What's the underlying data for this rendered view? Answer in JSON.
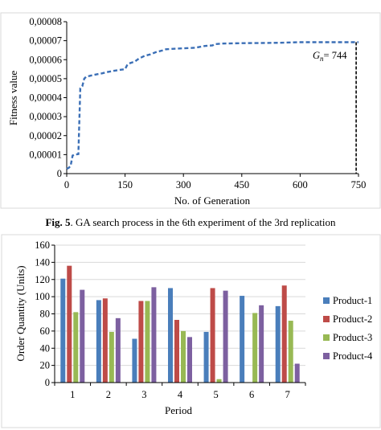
{
  "top_caption_fragment": "",
  "chart1": {
    "ylabel": "Fitness value",
    "xlabel": "No. of Generation",
    "annotation": "= 744",
    "annotation_symbol": "G",
    "annotation_subscript": "n",
    "line_color": "#3b6fb6"
  },
  "caption": {
    "prefix": "Fig. 5",
    "text": ". GA search process in the 6th experiment of the 3rd replication"
  },
  "chart2": {
    "ylabel": "Order Quantity (Units)",
    "xlabel": "Period"
  },
  "chart_data": [
    {
      "type": "line",
      "title": "",
      "xlabel": "No. of Generation",
      "ylabel": "Fitness value",
      "xlim": [
        0,
        750
      ],
      "ylim": [
        0,
        8e-05
      ],
      "x_ticks": [
        "0",
        "150",
        "300",
        "450",
        "600",
        "750"
      ],
      "y_ticks": [
        "0",
        "0,00001",
        "0,00002",
        "0,00003",
        "0,00004",
        "0,00005",
        "0,00006",
        "0,00007",
        "0,00008"
      ],
      "grid": false,
      "series": [
        {
          "x": [
            0,
            5,
            10,
            15,
            20,
            25,
            30,
            35,
            40,
            45,
            50,
            60,
            75,
            90,
            105,
            120,
            135,
            150,
            155,
            160,
            175,
            185,
            200,
            215,
            230,
            245,
            255,
            270,
            300,
            330,
            355,
            375,
            380,
            400,
            450,
            500,
            550,
            600,
            650,
            700,
            744,
            750
          ],
          "y": [
            2.5e-06,
            3e-06,
            4e-06,
            9.5e-06,
            1e-05,
            1.01e-05,
            1.03e-05,
            4.5e-05,
            4.6e-05,
            5e-05,
            5.1e-05,
            5.15e-05,
            5.22e-05,
            5.28e-05,
            5.35e-05,
            5.41e-05,
            5.46e-05,
            5.5e-05,
            5.7e-05,
            5.8e-05,
            5.9e-05,
            6.05e-05,
            6.2e-05,
            6.28e-05,
            6.4e-05,
            6.48e-05,
            6.55e-05,
            6.57e-05,
            6.6e-05,
            6.63e-05,
            6.72e-05,
            6.75e-05,
            6.82e-05,
            6.85e-05,
            6.87e-05,
            6.88e-05,
            6.89e-05,
            6.92e-05,
            6.92e-05,
            6.92e-05,
            6.92e-05,
            6.92e-05
          ]
        }
      ],
      "marker": {
        "x": 744
      }
    },
    {
      "type": "bar",
      "title": "",
      "xlabel": "Period",
      "ylabel": "Order Quantity (Units)",
      "ylim": [
        0,
        160
      ],
      "y_ticks": [
        "0",
        "20",
        "40",
        "60",
        "80",
        "100",
        "120",
        "140",
        "160"
      ],
      "grid": true,
      "legend_position": "right",
      "categories": [
        "1",
        "2",
        "3",
        "4",
        "5",
        "6",
        "7"
      ],
      "series": [
        {
          "name": "Product-1",
          "color": "#4a7ebb",
          "values": [
            121,
            96,
            51,
            110,
            59,
            101,
            89
          ]
        },
        {
          "name": "Product-2",
          "color": "#be4b48",
          "values": [
            136,
            98,
            95,
            73,
            110,
            0,
            113
          ]
        },
        {
          "name": "Product-3",
          "color": "#98b954",
          "values": [
            82,
            59,
            95,
            60,
            4,
            81,
            72
          ]
        },
        {
          "name": "Product-4",
          "color": "#7d60a0",
          "values": [
            108,
            75,
            111,
            53,
            107,
            90,
            22
          ]
        }
      ]
    }
  ]
}
